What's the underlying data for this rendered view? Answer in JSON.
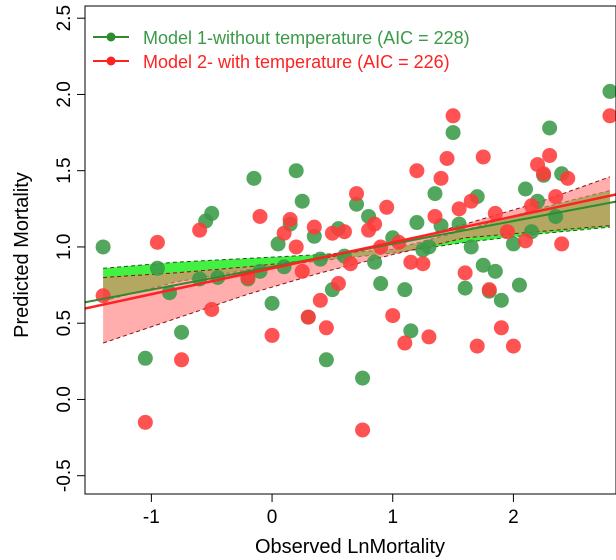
{
  "chart_data": {
    "type": "scatter",
    "title": "",
    "xlabel": "Observed LnMortality",
    "ylabel": "Predicted Mortality",
    "xlim": [
      -1.55,
      2.85
    ],
    "ylim": [
      -0.62,
      2.58
    ],
    "x_ticks": [
      -1,
      0,
      1,
      2
    ],
    "x_tick_labels": [
      "-1",
      "0",
      "1",
      "2"
    ],
    "y_ticks": [
      -0.5,
      0.0,
      0.5,
      1.0,
      1.5,
      2.0,
      2.5
    ],
    "y_tick_labels": [
      "-0.5",
      "0.0",
      "0.5",
      "1.0",
      "1.5",
      "2.0",
      "2.5"
    ],
    "grid": false,
    "legend_position": "top-left",
    "series": [
      {
        "name": "Model 1-without temperature (AIC = 228)",
        "color": "#2e8b2e",
        "point_color": "#3a9a48",
        "band_color": "#22ee22",
        "fit": {
          "intercept": 0.87,
          "slope": 0.15
        },
        "band": {
          "x": [
            -1.4,
            -0.8,
            -0.2,
            0.4,
            1.0,
            1.6,
            2.2,
            2.8
          ],
          "lower": [
            0.645,
            0.77,
            0.85,
            0.91,
            0.96,
            1.03,
            1.085,
            1.13
          ],
          "upper": [
            0.86,
            0.9,
            0.925,
            0.95,
            0.985,
            1.11,
            1.25,
            1.37
          ]
        },
        "x": [
          -1.4,
          -1.05,
          -0.95,
          -0.85,
          -0.75,
          -0.6,
          -0.55,
          -0.5,
          -0.45,
          -0.2,
          -0.15,
          -0.1,
          0.0,
          0.05,
          0.1,
          0.15,
          0.2,
          0.25,
          0.3,
          0.35,
          0.4,
          0.45,
          0.5,
          0.55,
          0.6,
          0.7,
          0.75,
          0.8,
          0.85,
          0.9,
          1.0,
          1.1,
          1.15,
          1.2,
          1.25,
          1.3,
          1.35,
          1.4,
          1.5,
          1.55,
          1.6,
          1.65,
          1.7,
          1.75,
          1.8,
          1.85,
          1.9,
          2.0,
          2.05,
          2.1,
          2.15,
          2.2,
          2.25,
          2.3,
          2.35,
          2.4,
          2.8
        ],
        "y": [
          1.0,
          0.27,
          0.86,
          0.7,
          0.44,
          0.79,
          1.17,
          1.22,
          0.8,
          0.79,
          1.45,
          0.84,
          0.63,
          1.02,
          0.87,
          1.15,
          1.5,
          1.3,
          0.54,
          1.07,
          0.92,
          0.26,
          0.72,
          1.12,
          0.94,
          1.28,
          0.14,
          1.2,
          0.9,
          0.76,
          1.06,
          0.72,
          0.45,
          1.16,
          0.98,
          1.0,
          1.35,
          1.14,
          1.75,
          1.15,
          0.73,
          1.0,
          1.33,
          0.88,
          0.71,
          0.84,
          0.65,
          1.02,
          0.75,
          1.38,
          1.1,
          1.3,
          1.47,
          1.78,
          1.2,
          1.48,
          2.02
        ]
      },
      {
        "name": "Model 2- with temperature (AIC = 226)",
        "color": "#ff2222",
        "point_color": "#ff3b3b",
        "band_color": "#ff7777",
        "fit": {
          "intercept": 0.86,
          "slope": 0.17
        },
        "band": {
          "x": [
            -1.4,
            -0.8,
            -0.2,
            0.4,
            1.0,
            1.6,
            2.2,
            2.8
          ],
          "lower": [
            0.37,
            0.53,
            0.69,
            0.83,
            0.95,
            1.06,
            1.1,
            1.14
          ],
          "upper": [
            0.8,
            0.83,
            0.87,
            0.92,
            1.02,
            1.15,
            1.29,
            1.46
          ]
        },
        "x": [
          -1.4,
          -1.05,
          -0.95,
          -0.75,
          -0.6,
          -0.5,
          -0.2,
          -0.1,
          0.0,
          0.1,
          0.15,
          0.2,
          0.25,
          0.3,
          0.35,
          0.4,
          0.45,
          0.5,
          0.55,
          0.6,
          0.65,
          0.7,
          0.75,
          0.8,
          0.85,
          0.9,
          0.95,
          1.0,
          1.05,
          1.1,
          1.15,
          1.2,
          1.25,
          1.3,
          1.35,
          1.4,
          1.45,
          1.5,
          1.55,
          1.6,
          1.65,
          1.7,
          1.75,
          1.8,
          1.85,
          1.9,
          1.95,
          2.0,
          2.1,
          2.15,
          2.2,
          2.25,
          2.3,
          2.35,
          2.4,
          2.45,
          2.8
        ],
        "y": [
          0.68,
          -0.15,
          1.03,
          0.26,
          1.11,
          0.59,
          0.8,
          1.2,
          0.42,
          1.09,
          1.18,
          1.0,
          0.84,
          0.54,
          1.13,
          0.65,
          0.47,
          1.09,
          0.76,
          1.1,
          0.89,
          1.35,
          -0.2,
          1.11,
          1.15,
          1.0,
          1.26,
          0.55,
          1.03,
          0.37,
          0.9,
          1.5,
          0.89,
          0.41,
          1.2,
          1.45,
          1.58,
          1.86,
          1.25,
          0.83,
          1.3,
          0.35,
          1.59,
          0.72,
          1.22,
          0.47,
          1.1,
          0.35,
          1.04,
          1.27,
          1.54,
          1.48,
          1.6,
          1.33,
          1.02,
          1.45,
          1.86
        ]
      }
    ]
  }
}
